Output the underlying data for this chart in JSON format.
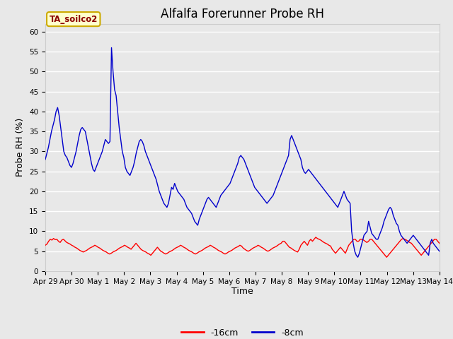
{
  "title": "Alfalfa Forerunner Probe RH",
  "xlabel": "Time",
  "ylabel": "Probe RH (%)",
  "annotation": "TA_soilco2",
  "legend_labels": [
    "-16cm",
    "-8cm"
  ],
  "legend_colors": [
    "#ff0000",
    "#0000cc"
  ],
  "ylim": [
    0,
    62
  ],
  "yticks": [
    0,
    5,
    10,
    15,
    20,
    25,
    30,
    35,
    40,
    45,
    50,
    55,
    60
  ],
  "bg_color": "#e8e8e8",
  "plot_bg_color": "#e8e8e8",
  "grid_color": "#ffffff",
  "title_fontsize": 12,
  "axis_label_fontsize": 9,
  "tick_fontsize": 7.5,
  "tick_labels": [
    "Apr 29",
    "Apr 30",
    "May 1",
    "May 2",
    "May 3",
    "May 4",
    "May 5",
    "May 6",
    "May 7",
    "May 8",
    "May 9",
    "May 10",
    "May 11",
    "May 12",
    "May 13",
    "May 14"
  ],
  "red_line": [
    6.5,
    6.8,
    7.5,
    8.0,
    7.8,
    8.2,
    7.9,
    8.0,
    7.5,
    7.2,
    7.8,
    8.0,
    7.6,
    7.2,
    7.0,
    6.8,
    6.5,
    6.3,
    6.0,
    5.8,
    5.5,
    5.2,
    5.0,
    4.8,
    5.0,
    5.2,
    5.5,
    5.8,
    6.0,
    6.2,
    6.5,
    6.3,
    6.0,
    5.8,
    5.5,
    5.2,
    5.0,
    4.8,
    4.5,
    4.3,
    4.5,
    4.8,
    5.0,
    5.2,
    5.5,
    5.8,
    6.0,
    6.2,
    6.5,
    6.3,
    6.0,
    5.8,
    5.5,
    6.0,
    6.5,
    7.0,
    6.5,
    6.0,
    5.5,
    5.2,
    5.0,
    4.8,
    4.5,
    4.3,
    4.0,
    4.5,
    5.0,
    5.5,
    6.0,
    5.5,
    5.0,
    4.8,
    4.5,
    4.3,
    4.5,
    4.8,
    5.0,
    5.2,
    5.5,
    5.8,
    6.0,
    6.2,
    6.5,
    6.3,
    6.0,
    5.8,
    5.5,
    5.2,
    5.0,
    4.8,
    4.5,
    4.3,
    4.5,
    4.8,
    5.0,
    5.2,
    5.5,
    5.8,
    6.0,
    6.2,
    6.5,
    6.3,
    6.0,
    5.8,
    5.5,
    5.2,
    5.0,
    4.8,
    4.5,
    4.3,
    4.5,
    4.8,
    5.0,
    5.2,
    5.5,
    5.8,
    6.0,
    6.2,
    6.5,
    6.3,
    5.8,
    5.5,
    5.2,
    5.0,
    5.2,
    5.5,
    5.8,
    6.0,
    6.2,
    6.5,
    6.3,
    6.0,
    5.8,
    5.5,
    5.2,
    5.0,
    5.2,
    5.5,
    5.8,
    6.0,
    6.2,
    6.5,
    6.8,
    7.0,
    7.5,
    7.5,
    7.0,
    6.5,
    6.0,
    5.8,
    5.5,
    5.2,
    5.0,
    4.8,
    5.5,
    6.5,
    7.0,
    7.5,
    7.0,
    6.5,
    7.5,
    8.0,
    7.5,
    8.0,
    8.5,
    8.2,
    8.0,
    7.8,
    7.5,
    7.2,
    7.0,
    6.8,
    6.5,
    6.3,
    5.5,
    5.0,
    4.5,
    5.0,
    5.5,
    6.0,
    5.5,
    5.0,
    4.5,
    5.5,
    6.5,
    7.0,
    7.5,
    8.0,
    8.0,
    7.5,
    7.5,
    8.0,
    8.0,
    7.8,
    7.5,
    7.2,
    7.5,
    8.0,
    8.0,
    7.5,
    7.0,
    6.5,
    6.0,
    5.5,
    5.0,
    4.5,
    4.0,
    3.5,
    4.0,
    4.5,
    5.0,
    5.5,
    6.0,
    6.5,
    7.0,
    7.5,
    8.0,
    8.2,
    8.0,
    7.8,
    7.5,
    7.2,
    7.0,
    6.5,
    6.0,
    5.5,
    5.0,
    4.5,
    4.0,
    4.5,
    5.0,
    5.5,
    6.0,
    6.5,
    7.0,
    7.5,
    8.0,
    8.0,
    7.5,
    7.0
  ],
  "blue_line": [
    28.0,
    29.5,
    31.0,
    33.0,
    35.0,
    36.5,
    38.0,
    40.0,
    41.0,
    39.0,
    36.0,
    33.0,
    30.0,
    29.0,
    28.5,
    27.5,
    26.5,
    26.0,
    27.0,
    28.5,
    30.0,
    32.0,
    34.0,
    35.5,
    36.0,
    35.5,
    35.0,
    33.0,
    31.0,
    29.0,
    27.0,
    25.5,
    25.0,
    26.0,
    27.0,
    28.0,
    29.0,
    30.0,
    31.5,
    33.0,
    32.5,
    32.0,
    32.5,
    56.0,
    50.0,
    45.5,
    44.0,
    40.0,
    36.0,
    33.0,
    30.0,
    28.5,
    26.0,
    25.0,
    24.5,
    24.0,
    25.0,
    26.0,
    27.5,
    29.5,
    31.0,
    32.5,
    33.0,
    32.5,
    31.5,
    30.0,
    29.0,
    28.0,
    27.0,
    26.0,
    25.0,
    24.0,
    23.0,
    21.5,
    20.0,
    19.0,
    18.0,
    17.0,
    16.5,
    16.0,
    17.0,
    19.0,
    21.0,
    20.5,
    22.0,
    21.0,
    20.0,
    19.5,
    19.0,
    18.5,
    18.0,
    17.0,
    16.0,
    15.5,
    15.0,
    14.5,
    13.5,
    12.5,
    12.0,
    11.5,
    13.0,
    14.0,
    15.0,
    16.0,
    17.0,
    18.0,
    18.5,
    18.0,
    17.5,
    17.0,
    16.5,
    16.0,
    17.0,
    18.0,
    19.0,
    19.5,
    20.0,
    20.5,
    21.0,
    21.5,
    22.0,
    23.0,
    24.0,
    25.0,
    26.0,
    27.0,
    28.5,
    29.0,
    28.5,
    28.0,
    27.0,
    26.0,
    25.0,
    24.0,
    23.0,
    22.0,
    21.0,
    20.5,
    20.0,
    19.5,
    19.0,
    18.5,
    18.0,
    17.5,
    17.0,
    17.5,
    18.0,
    18.5,
    19.0,
    20.0,
    21.0,
    22.0,
    23.0,
    24.0,
    25.0,
    26.0,
    27.0,
    28.0,
    29.0,
    33.0,
    34.0,
    33.0,
    32.0,
    31.0,
    30.0,
    29.0,
    28.0,
    26.0,
    25.0,
    24.5,
    25.0,
    25.5,
    25.0,
    24.5,
    24.0,
    23.5,
    23.0,
    22.5,
    22.0,
    21.5,
    21.0,
    20.5,
    20.0,
    19.5,
    19.0,
    18.5,
    18.0,
    17.5,
    17.0,
    16.5,
    16.0,
    17.0,
    18.0,
    19.0,
    20.0,
    19.0,
    18.0,
    17.5,
    17.0,
    10.0,
    7.0,
    5.0,
    4.0,
    3.5,
    4.5,
    6.0,
    7.5,
    9.0,
    9.5,
    10.0,
    12.5,
    11.0,
    9.5,
    9.0,
    8.5,
    8.0,
    8.0,
    9.0,
    10.0,
    11.0,
    12.5,
    13.5,
    14.5,
    15.5,
    16.0,
    15.5,
    14.0,
    13.0,
    12.0,
    11.5,
    10.0,
    9.0,
    8.5,
    8.0,
    7.5,
    7.0,
    7.5,
    8.0,
    8.5,
    9.0,
    8.5,
    8.0,
    7.5,
    7.0,
    6.5,
    6.0,
    5.5,
    5.0,
    4.5,
    4.0,
    7.0,
    8.0,
    7.0,
    6.5,
    6.0,
    5.5,
    5.0
  ]
}
